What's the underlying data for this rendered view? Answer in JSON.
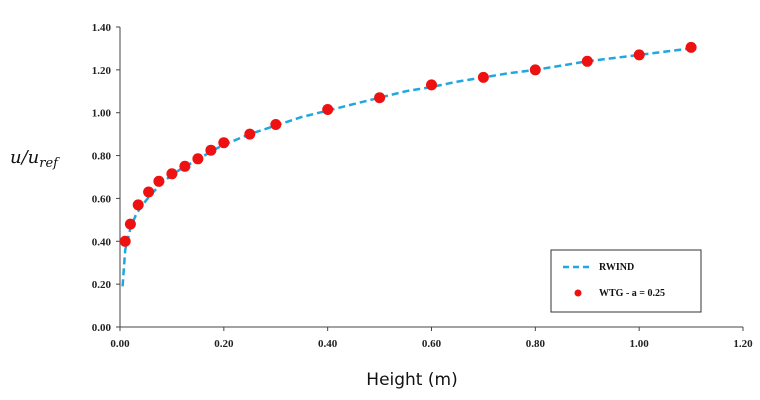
{
  "chart_data": {
    "type": "scatter",
    "xlabel": "Height (m)",
    "ylabel_main": "u/u",
    "ylabel_sub": "ref",
    "xlim": [
      0,
      1.2
    ],
    "ylim": [
      0,
      1.4
    ],
    "x_ticks": [
      "0.00",
      "0.20",
      "0.40",
      "0.60",
      "0.80",
      "1.00",
      "1.20"
    ],
    "y_ticks": [
      "0.00",
      "0.20",
      "0.40",
      "0.60",
      "0.80",
      "1.00",
      "1.20",
      "1.40"
    ],
    "grid": false,
    "legend_position": "bottom-right",
    "series": [
      {
        "name": "RWIND",
        "kind": "line",
        "style": "dashed",
        "color": "#1ea7e1",
        "x": [
          0.005,
          0.01,
          0.02,
          0.03,
          0.04,
          0.06,
          0.08,
          0.1,
          0.125,
          0.15,
          0.175,
          0.2,
          0.25,
          0.3,
          0.35,
          0.4,
          0.45,
          0.5,
          0.55,
          0.6,
          0.65,
          0.7,
          0.75,
          0.8,
          0.85,
          0.9,
          0.95,
          1.0,
          1.05,
          1.1
        ],
        "y": [
          0.19,
          0.36,
          0.46,
          0.52,
          0.56,
          0.62,
          0.67,
          0.71,
          0.75,
          0.78,
          0.82,
          0.85,
          0.9,
          0.94,
          0.98,
          1.01,
          1.04,
          1.07,
          1.1,
          1.12,
          1.145,
          1.165,
          1.185,
          1.2,
          1.22,
          1.24,
          1.255,
          1.27,
          1.285,
          1.3
        ]
      },
      {
        "name": "WTG - a = 0.25",
        "kind": "scatter",
        "color": "#ee1111",
        "x": [
          0.01,
          0.02,
          0.035,
          0.055,
          0.075,
          0.1,
          0.125,
          0.15,
          0.175,
          0.2,
          0.25,
          0.3,
          0.4,
          0.5,
          0.6,
          0.7,
          0.8,
          0.9,
          1.0,
          1.1
        ],
        "y": [
          0.4,
          0.48,
          0.57,
          0.63,
          0.68,
          0.715,
          0.75,
          0.785,
          0.825,
          0.86,
          0.9,
          0.945,
          1.015,
          1.07,
          1.13,
          1.165,
          1.2,
          1.24,
          1.27,
          1.305
        ]
      }
    ]
  }
}
